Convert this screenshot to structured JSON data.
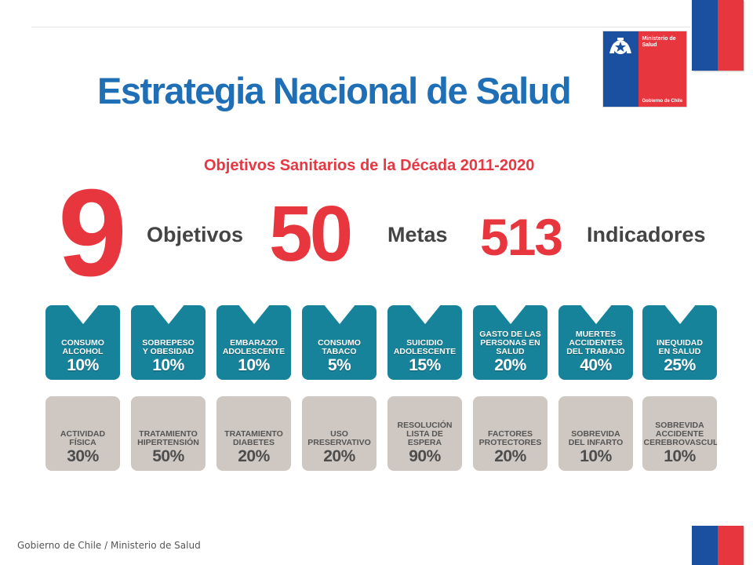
{
  "header": {
    "title": "Estrategia Nacional de Salud",
    "logo": {
      "ministry": "Ministerio de Salud",
      "government": "Gobierno de Chile"
    }
  },
  "subtitle": "Objetivos Sanitarios de la Década 2011-2020",
  "stats": [
    {
      "number": "9",
      "label": "Objetivos"
    },
    {
      "number": "50",
      "label": "Metas"
    },
    {
      "number": "513",
      "label": "Indicadores"
    }
  ],
  "teal_goals": [
    {
      "name": "CONSUMO\nALCOHOL",
      "value": "10%"
    },
    {
      "name": "SOBREPESO\nY OBESIDAD",
      "value": "10%"
    },
    {
      "name": "EMBARAZO\nADOLESCENTE",
      "value": "10%"
    },
    {
      "name": "CONSUMO\nTABACO",
      "value": "5%"
    },
    {
      "name": "SUICIDIO\nADOLESCENTE",
      "value": "15%"
    },
    {
      "name": "GASTO DE LAS\nPERSONAS EN\nSALUD",
      "value": "20%"
    },
    {
      "name": "MUERTES\nACCIDENTES\nDEL TRABAJO",
      "value": "40%"
    },
    {
      "name": "INEQUIDAD\nEN SALUD",
      "value": "25%"
    }
  ],
  "gray_goals": [
    {
      "name": "ACTIVIDAD\nFÍSICA",
      "value": "30%"
    },
    {
      "name": "TRATAMIENTO\nHIPERTENSIÓN",
      "value": "50%"
    },
    {
      "name": "TRATAMIENTO\nDIABETES",
      "value": "20%"
    },
    {
      "name": "USO\nPRESERVATIVO",
      "value": "20%"
    },
    {
      "name": "RESOLUCIÓN\nLISTA DE ESPERA",
      "value": "90%"
    },
    {
      "name": "FACTORES\nPROTECTORES",
      "value": "20%"
    },
    {
      "name": "SOBREVIDA\nDEL INFARTO",
      "value": "10%"
    },
    {
      "name": "SOBREVIDA\nACCIDENTE\nCEREBROVASCULAR",
      "value": "10%"
    }
  ],
  "footer": "Gobierno de Chile / Ministerio de Salud",
  "colors": {
    "flag_blue": "#1b4fa0",
    "flag_red": "#e8363f",
    "title_blue": "#1e6fb5",
    "accent_red": "#e63843",
    "tile_teal": "#17839b",
    "tile_gray": "#cfc8c2"
  }
}
